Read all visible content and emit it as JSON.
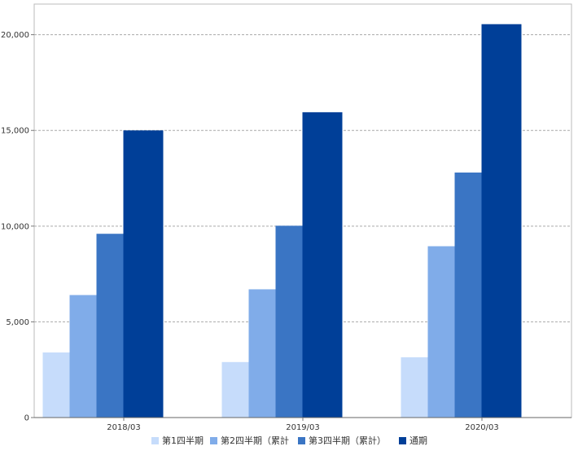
{
  "chart_data": {
    "type": "bar",
    "categories": [
      "2018/03",
      "2019/03",
      "2020/03"
    ],
    "series": [
      {
        "name": "第1四半期",
        "color": "#c6dcfb",
        "values": [
          3400,
          2900,
          3150
        ]
      },
      {
        "name": "第2四半期（累計",
        "color": "#80ace9",
        "values": [
          6400,
          6700,
          8950
        ]
      },
      {
        "name": "第3四半期（累計）",
        "color": "#3a75c4",
        "values": [
          9600,
          10020,
          12800
        ]
      },
      {
        "name": "通期",
        "color": "#003f98",
        "values": [
          15000,
          15950,
          20550
        ]
      }
    ],
    "yticks": [
      "0",
      "5,000",
      "10,000",
      "15,000",
      "20,000"
    ],
    "ytick_values": [
      0,
      5000,
      10000,
      15000,
      20000
    ],
    "ylim": [
      0,
      21600
    ],
    "grid": true,
    "legend_position": "bottom"
  }
}
